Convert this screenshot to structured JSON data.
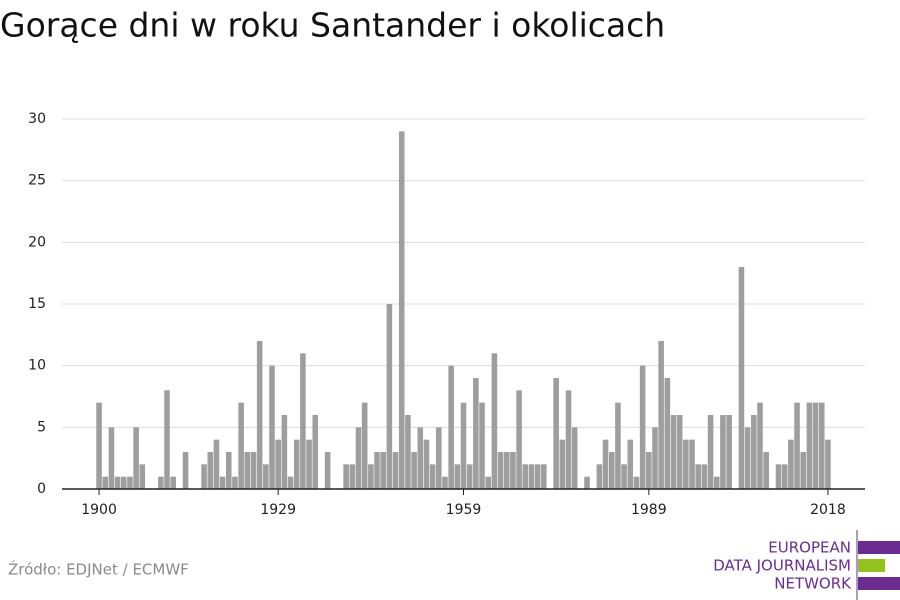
{
  "chart_data": {
    "type": "bar",
    "title": "Gorące dni w roku Santander i okolicach",
    "source": "Źródło: EDJNet / ECMWF",
    "logo": [
      "EUROPEAN",
      "DATA JOURNALISM",
      "NETWORK"
    ],
    "color": "#9e9e9e",
    "x": [
      1900,
      1901,
      1902,
      1903,
      1904,
      1905,
      1906,
      1907,
      1908,
      1909,
      1910,
      1911,
      1912,
      1913,
      1914,
      1915,
      1916,
      1917,
      1918,
      1919,
      1920,
      1921,
      1922,
      1923,
      1924,
      1925,
      1926,
      1927,
      1928,
      1929,
      1930,
      1931,
      1932,
      1933,
      1934,
      1935,
      1936,
      1937,
      1938,
      1939,
      1940,
      1941,
      1942,
      1943,
      1944,
      1945,
      1946,
      1947,
      1948,
      1949,
      1950,
      1951,
      1952,
      1953,
      1954,
      1955,
      1956,
      1957,
      1958,
      1959,
      1960,
      1961,
      1962,
      1963,
      1964,
      1965,
      1966,
      1967,
      1968,
      1969,
      1970,
      1971,
      1972,
      1973,
      1974,
      1975,
      1976,
      1977,
      1978,
      1979,
      1980,
      1981,
      1982,
      1983,
      1984,
      1985,
      1986,
      1987,
      1988,
      1989,
      1990,
      1991,
      1992,
      1993,
      1994,
      1995,
      1996,
      1997,
      1998,
      1999,
      2000,
      2001,
      2002,
      2003,
      2004,
      2005,
      2006,
      2007,
      2008,
      2009,
      2010,
      2011,
      2012,
      2013,
      2014,
      2015,
      2016,
      2017,
      2018
    ],
    "values": [
      7,
      1,
      5,
      1,
      1,
      1,
      5,
      2,
      0,
      0,
      1,
      8,
      1,
      0,
      3,
      0,
      0,
      2,
      3,
      4,
      1,
      3,
      1,
      7,
      3,
      3,
      12,
      2,
      10,
      4,
      6,
      1,
      4,
      11,
      4,
      6,
      0,
      3,
      0,
      0,
      2,
      2,
      5,
      7,
      2,
      3,
      3,
      15,
      3,
      29,
      6,
      3,
      5,
      4,
      2,
      5,
      1,
      10,
      2,
      7,
      2,
      9,
      7,
      1,
      11,
      3,
      3,
      3,
      8,
      2,
      2,
      2,
      2,
      0,
      9,
      4,
      8,
      5,
      0,
      1,
      0,
      2,
      4,
      3,
      7,
      2,
      4,
      1,
      10,
      3,
      5,
      12,
      9,
      6,
      6,
      4,
      4,
      2,
      2,
      6,
      1,
      6,
      6,
      0,
      18,
      5,
      6,
      7,
      3,
      0,
      2,
      2,
      4,
      7,
      3,
      7,
      7,
      7,
      4
    ],
    "xlim": [
      1894,
      2024
    ],
    "xticks": [
      1900,
      1929,
      1959,
      1989,
      2018
    ],
    "ylim": [
      0,
      30
    ],
    "yticks": [
      0,
      5,
      10,
      15,
      20,
      25,
      30
    ],
    "grid": true
  }
}
